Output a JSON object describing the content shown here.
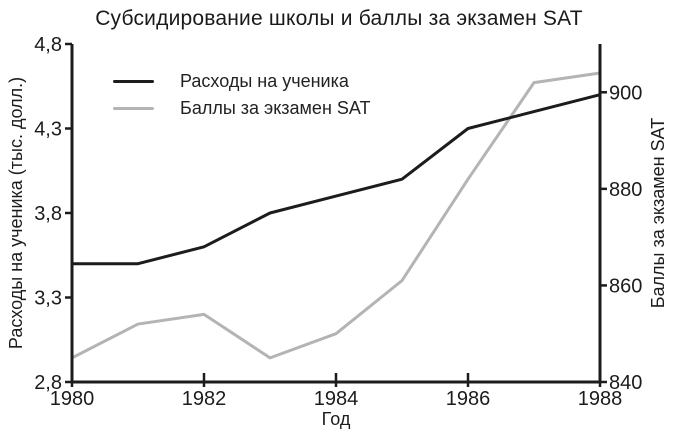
{
  "title": "Субсидирование школы и баллы за экзамен SAT",
  "chart_data": {
    "type": "line",
    "title": "Субсидирование школы и баллы за экзамен SAT",
    "xlabel": "Год",
    "ylabel_left": "Расходы на ученика (тыс. долл.)",
    "ylabel_right": "Баллы за экзамен SAT",
    "x": [
      1980,
      1981,
      1982,
      1983,
      1984,
      1985,
      1986,
      1987,
      1988
    ],
    "series": [
      {
        "key": "spending",
        "name": "Расходы на ученика",
        "axis": "left",
        "color": "#1c1c1c",
        "values": [
          3.5,
          3.5,
          3.6,
          3.8,
          3.9,
          4.0,
          4.3,
          4.4,
          4.5
        ]
      },
      {
        "key": "sat-scores",
        "name": "Баллы за экзамен SAT",
        "axis": "right",
        "color": "#b4b4b4",
        "values": [
          845,
          852,
          854,
          845,
          850,
          861,
          882,
          902,
          904
        ]
      }
    ],
    "xlim": [
      1980,
      1988
    ],
    "ylim_left": [
      2.8,
      4.8
    ],
    "ylim_right": [
      840,
      910
    ],
    "xticks": [
      {
        "v": 1980,
        "label": "1980"
      },
      {
        "v": 1982,
        "label": "1982"
      },
      {
        "v": 1984,
        "label": "1984"
      },
      {
        "v": 1986,
        "label": "1986"
      },
      {
        "v": 1988,
        "label": "1988"
      }
    ],
    "yticks_left": [
      {
        "v": 2.8,
        "label": "2,8"
      },
      {
        "v": 3.3,
        "label": "3,3"
      },
      {
        "v": 3.8,
        "label": "3,8"
      },
      {
        "v": 4.3,
        "label": "4,3"
      },
      {
        "v": 4.8,
        "label": "4,8"
      }
    ],
    "yticks_right": [
      {
        "v": 840,
        "label": "840"
      },
      {
        "v": 860,
        "label": "860"
      },
      {
        "v": 880,
        "label": "880"
      },
      {
        "v": 900,
        "label": "900"
      }
    ],
    "grid": false,
    "legend_position": "upper-left",
    "axis_color": "#1c1c1c",
    "text_color": "#1c1c1c"
  }
}
